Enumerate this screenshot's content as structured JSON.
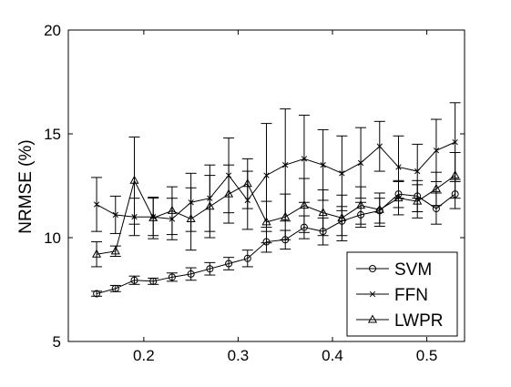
{
  "chart_data": {
    "type": "line",
    "ylabel": "NRMSE (%)",
    "xlim": [
      0.12,
      0.54
    ],
    "ylim": [
      5,
      20
    ],
    "xticks": [
      0.2,
      0.3,
      0.4,
      0.5
    ],
    "yticks": [
      5,
      10,
      15,
      20
    ],
    "xtick_labels": [
      "0.2",
      "0.3",
      "0.4",
      "0.5"
    ],
    "ytick_labels": [
      "5",
      "10",
      "15",
      "20"
    ],
    "legend_position": "bottom-right",
    "x": [
      0.15,
      0.17,
      0.19,
      0.21,
      0.23,
      0.25,
      0.27,
      0.29,
      0.31,
      0.33,
      0.35,
      0.37,
      0.39,
      0.41,
      0.43,
      0.45,
      0.47,
      0.49,
      0.51,
      0.53
    ],
    "series": [
      {
        "name": "SVM",
        "marker": "circle",
        "values": [
          7.3,
          7.55,
          7.95,
          7.9,
          8.1,
          8.25,
          8.5,
          8.75,
          9.0,
          9.8,
          9.9,
          10.5,
          10.3,
          10.8,
          11.1,
          11.3,
          12.1,
          12.0,
          11.4,
          12.1
        ],
        "errors": [
          0.12,
          0.15,
          0.2,
          0.15,
          0.2,
          0.3,
          0.3,
          0.3,
          0.4,
          0.5,
          0.45,
          0.55,
          0.65,
          0.7,
          0.6,
          0.6,
          0.65,
          0.75,
          0.75,
          0.7
        ]
      },
      {
        "name": "FFN",
        "marker": "x",
        "values": [
          11.6,
          11.1,
          11.0,
          11.0,
          10.9,
          11.7,
          11.9,
          13.0,
          11.8,
          13.0,
          13.5,
          13.8,
          13.5,
          13.1,
          13.6,
          14.4,
          13.4,
          13.2,
          14.2,
          14.6
        ],
        "errors": [
          1.3,
          0.9,
          0.9,
          0.9,
          1.0,
          1.4,
          1.6,
          1.8,
          1.4,
          2.5,
          2.7,
          2.1,
          1.7,
          1.8,
          1.7,
          1.2,
          1.5,
          1.3,
          1.5,
          1.9
        ]
      },
      {
        "name": "LWPR",
        "marker": "triangle",
        "values": [
          9.2,
          9.35,
          12.75,
          10.95,
          11.3,
          10.9,
          11.5,
          12.1,
          12.6,
          10.75,
          11.0,
          11.55,
          11.2,
          10.95,
          11.55,
          11.35,
          11.9,
          11.75,
          12.35,
          13.0
        ],
        "errors": [
          0.6,
          0.25,
          2.1,
          1.0,
          1.15,
          1.5,
          1.5,
          1.4,
          1.2,
          1.0,
          1.1,
          1.3,
          1.1,
          1.1,
          0.9,
          0.8,
          0.8,
          0.8,
          0.8,
          1.1
        ]
      }
    ]
  }
}
